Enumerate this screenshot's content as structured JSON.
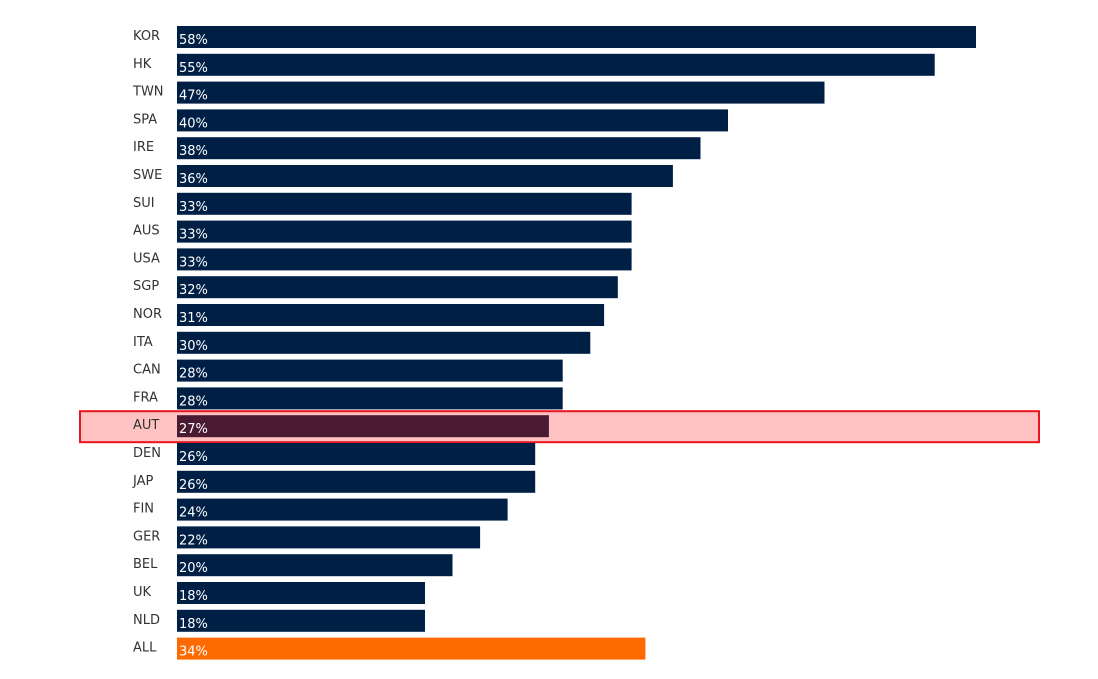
{
  "chart_data": {
    "type": "bar",
    "orientation": "horizontal",
    "categories": [
      "KOR",
      "HK",
      "TWN",
      "SPA",
      "IRE",
      "SWE",
      "SUI",
      "AUS",
      "USA",
      "SGP",
      "NOR",
      "ITA",
      "CAN",
      "FRA",
      "AUT",
      "DEN",
      "JAP",
      "FIN",
      "GER",
      "BEL",
      "UK",
      "NLD",
      "ALL"
    ],
    "values": [
      58,
      55,
      47,
      40,
      38,
      36,
      33,
      33,
      33,
      32,
      31,
      30,
      28,
      28,
      27,
      26,
      26,
      24,
      22,
      20,
      18,
      18,
      34
    ],
    "value_labels": [
      "58%",
      "55%",
      "47%",
      "40%",
      "38%",
      "36%",
      "33%",
      "33%",
      "33%",
      "32%",
      "31%",
      "30%",
      "28%",
      "28%",
      "27%",
      "26%",
      "26%",
      "24%",
      "22%",
      "20%",
      "18%",
      "18%",
      "34%"
    ],
    "unit": "%",
    "xlim": [
      0,
      58
    ],
    "highlighted_category": "AUT",
    "total_category": "ALL",
    "title": "",
    "xlabel": "",
    "ylabel": "",
    "grid": false,
    "legend": "none"
  },
  "colors": {
    "bar": "#001f45",
    "highlight_bar": "#4a1a33",
    "highlight_fill": "#ffc2c2",
    "highlight_border": "#e8141e",
    "total_bar": "#ff6a00",
    "category_text": "#333333",
    "value_text": "#ffffff",
    "highlight_value_text": "#f2c8d0"
  }
}
